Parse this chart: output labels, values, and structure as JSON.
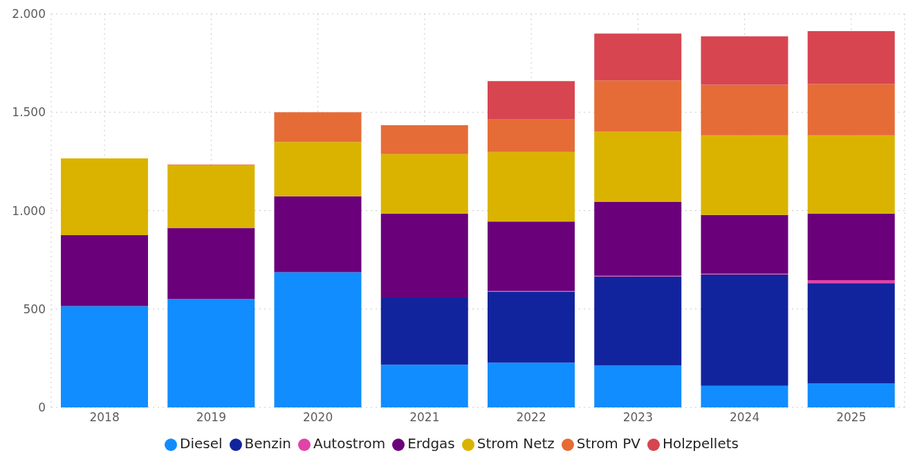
{
  "chart_data": {
    "type": "bar",
    "stacked": true,
    "categories": [
      "2018",
      "2019",
      "2020",
      "2021",
      "2022",
      "2023",
      "2024",
      "2025"
    ],
    "series": [
      {
        "name": "Diesel",
        "color": "#118dff",
        "values": [
          515,
          551,
          687,
          217,
          228,
          213,
          110,
          121
        ]
      },
      {
        "name": "Benzin",
        "color": "#12239e",
        "values": [
          null,
          null,
          null,
          342,
          360,
          452,
          566,
          511
        ]
      },
      {
        "name": "Autostrom",
        "color": "#e044a7",
        "values": [
          null,
          null,
          null,
          null,
          3,
          4,
          3,
          15
        ]
      },
      {
        "name": "Erdgas",
        "color": "#6b007b",
        "values": [
          360,
          361,
          386,
          426,
          354,
          375,
          299,
          338
        ]
      },
      {
        "name": "Strom Netz",
        "color": "#d9b300",
        "values": [
          390,
          319,
          276,
          302,
          353,
          357,
          404,
          397
        ]
      },
      {
        "name": "Strom PV",
        "color": "#e66c37",
        "values": [
          null,
          4,
          151,
          147,
          165,
          261,
          258,
          261
        ]
      },
      {
        "name": "Holzpellets",
        "color": "#d64550",
        "values": [
          null,
          null,
          null,
          null,
          195,
          238,
          246,
          269
        ]
      }
    ],
    "ylim": [
      0,
      2000
    ],
    "yticks": [
      0,
      {
        "value": 500,
        "label": "500"
      },
      {
        "value": 1000,
        "label": "1.000"
      },
      {
        "value": 1500,
        "label": "1.500"
      },
      {
        "value": 2000,
        "label": "2.000"
      }
    ],
    "grid": true,
    "legend": "bottom"
  }
}
